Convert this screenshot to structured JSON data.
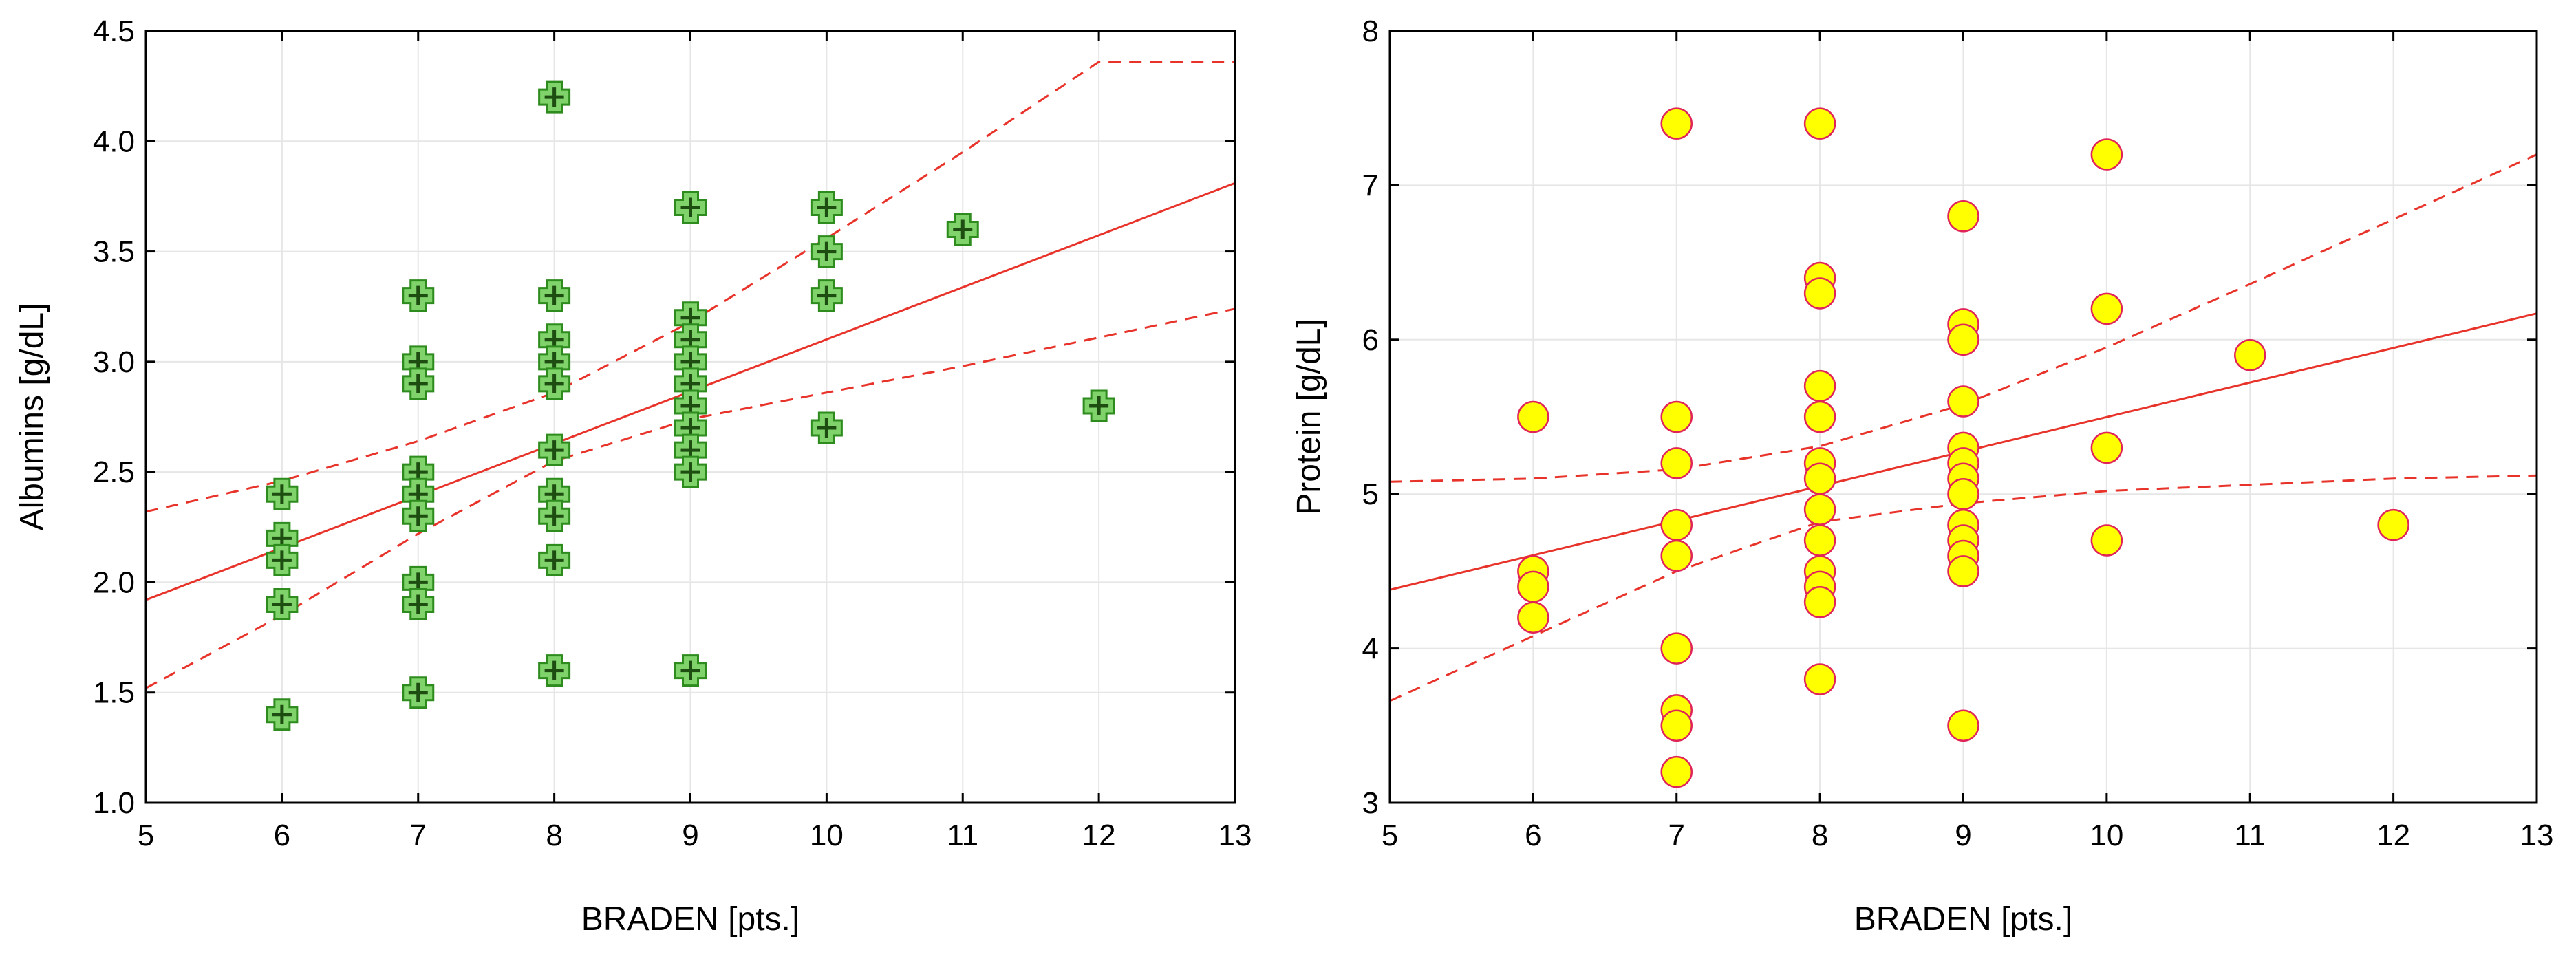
{
  "chart_data": [
    {
      "type": "scatter",
      "name": "albumins",
      "xlabel": "BRADEN [pts.]",
      "ylabel": "Albumins [g/dL]",
      "xlim": [
        5,
        13
      ],
      "ylim": [
        1.0,
        4.5
      ],
      "xticks": [
        5,
        6,
        7,
        8,
        9,
        10,
        11,
        12,
        13
      ],
      "yticks": [
        1.0,
        1.5,
        2.0,
        2.5,
        3.0,
        3.5,
        4.0,
        4.5
      ],
      "ytick_labels": [
        "1.0",
        "1.5",
        "2.0",
        "2.5",
        "3.0",
        "3.5",
        "4.0",
        "4.5"
      ],
      "grid": true,
      "marker": "cross",
      "marker_color": "#2e8b1e",
      "points": [
        [
          6,
          2.4
        ],
        [
          6,
          2.2
        ],
        [
          6,
          2.1
        ],
        [
          6,
          1.9
        ],
        [
          6,
          1.4
        ],
        [
          7,
          3.3
        ],
        [
          7,
          3.0
        ],
        [
          7,
          2.9
        ],
        [
          7,
          2.5
        ],
        [
          7,
          2.4
        ],
        [
          7,
          2.3
        ],
        [
          7,
          2.0
        ],
        [
          7,
          1.9
        ],
        [
          7,
          1.5
        ],
        [
          8,
          4.2
        ],
        [
          8,
          3.3
        ],
        [
          8,
          3.1
        ],
        [
          8,
          3.0
        ],
        [
          8,
          2.9
        ],
        [
          8,
          2.6
        ],
        [
          8,
          2.4
        ],
        [
          8,
          2.3
        ],
        [
          8,
          2.1
        ],
        [
          8,
          1.6
        ],
        [
          9,
          3.7
        ],
        [
          9,
          3.2
        ],
        [
          9,
          3.1
        ],
        [
          9,
          3.0
        ],
        [
          9,
          2.9
        ],
        [
          9,
          2.8
        ],
        [
          9,
          2.7
        ],
        [
          9,
          2.6
        ],
        [
          9,
          2.5
        ],
        [
          9,
          1.6
        ],
        [
          10,
          3.7
        ],
        [
          10,
          3.5
        ],
        [
          10,
          3.3
        ],
        [
          10,
          2.7
        ],
        [
          11,
          3.6
        ],
        [
          12,
          2.8
        ]
      ],
      "regression": {
        "color": "#e8332a",
        "line": [
          [
            5,
            1.92
          ],
          [
            13,
            3.81
          ]
        ],
        "ci_upper": [
          [
            5,
            2.32
          ],
          [
            6,
            2.46
          ],
          [
            7,
            2.64
          ],
          [
            8,
            2.86
          ],
          [
            9,
            3.18
          ],
          [
            10,
            3.56
          ],
          [
            11,
            3.95
          ],
          [
            12,
            4.36
          ],
          [
            13,
            4.36
          ]
        ],
        "ci_lower": [
          [
            5,
            1.52
          ],
          [
            6,
            1.85
          ],
          [
            7,
            2.22
          ],
          [
            8,
            2.55
          ],
          [
            9,
            2.74
          ],
          [
            10,
            2.86
          ],
          [
            11,
            2.98
          ],
          [
            12,
            3.11
          ],
          [
            13,
            3.24
          ]
        ]
      }
    },
    {
      "type": "scatter",
      "name": "protein",
      "xlabel": "BRADEN [pts.]",
      "ylabel": "Protein [g/dL]",
      "xlim": [
        5,
        13
      ],
      "ylim": [
        3,
        8
      ],
      "xticks": [
        5,
        6,
        7,
        8,
        9,
        10,
        11,
        12,
        13
      ],
      "yticks": [
        3,
        4,
        5,
        6,
        7,
        8
      ],
      "ytick_labels": [
        "3",
        "4",
        "5",
        "6",
        "7",
        "8"
      ],
      "grid": true,
      "marker": "circle",
      "marker_color": "#ffff00",
      "marker_edge": "#e0245a",
      "points": [
        [
          6,
          5.5
        ],
        [
          6,
          4.5
        ],
        [
          6,
          4.4
        ],
        [
          6,
          4.2
        ],
        [
          7,
          7.4
        ],
        [
          7,
          5.5
        ],
        [
          7,
          5.2
        ],
        [
          7,
          4.8
        ],
        [
          7,
          4.6
        ],
        [
          7,
          4.0
        ],
        [
          7,
          3.6
        ],
        [
          7,
          3.5
        ],
        [
          7,
          3.2
        ],
        [
          8,
          7.4
        ],
        [
          8,
          6.4
        ],
        [
          8,
          6.3
        ],
        [
          8,
          5.7
        ],
        [
          8,
          5.5
        ],
        [
          8,
          5.2
        ],
        [
          8,
          5.1
        ],
        [
          8,
          4.9
        ],
        [
          8,
          4.7
        ],
        [
          8,
          4.5
        ],
        [
          8,
          4.4
        ],
        [
          8,
          4.3
        ],
        [
          8,
          3.8
        ],
        [
          9,
          6.8
        ],
        [
          9,
          6.1
        ],
        [
          9,
          6.0
        ],
        [
          9,
          5.6
        ],
        [
          9,
          5.3
        ],
        [
          9,
          5.2
        ],
        [
          9,
          5.1
        ],
        [
          9,
          5.0
        ],
        [
          9,
          4.8
        ],
        [
          9,
          4.7
        ],
        [
          9,
          4.6
        ],
        [
          9,
          4.5
        ],
        [
          9,
          3.5
        ],
        [
          10,
          7.2
        ],
        [
          10,
          6.2
        ],
        [
          10,
          5.3
        ],
        [
          10,
          4.7
        ],
        [
          11,
          5.9
        ],
        [
          12,
          4.8
        ]
      ],
      "regression": {
        "color": "#e8332a",
        "line": [
          [
            5,
            4.38
          ],
          [
            13,
            6.17
          ]
        ],
        "ci_upper": [
          [
            5,
            5.08
          ],
          [
            6,
            5.1
          ],
          [
            7,
            5.16
          ],
          [
            8,
            5.31
          ],
          [
            9,
            5.58
          ],
          [
            10,
            5.95
          ],
          [
            11,
            6.36
          ],
          [
            12,
            6.78
          ],
          [
            13,
            7.2
          ]
        ],
        "ci_lower": [
          [
            5,
            3.66
          ],
          [
            6,
            4.08
          ],
          [
            7,
            4.5
          ],
          [
            8,
            4.82
          ],
          [
            9,
            4.94
          ],
          [
            10,
            5.02
          ],
          [
            11,
            5.06
          ],
          [
            12,
            5.1
          ],
          [
            13,
            5.12
          ]
        ]
      }
    }
  ]
}
